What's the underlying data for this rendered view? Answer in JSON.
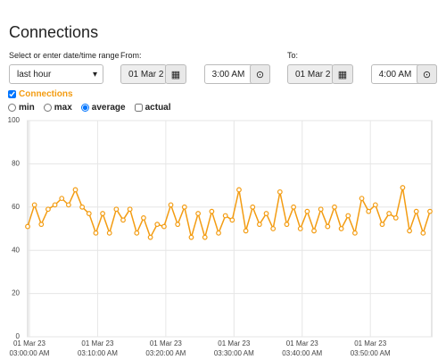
{
  "header": {
    "title": "Connections"
  },
  "range": {
    "label": "Select or enter date/time range",
    "preset": "last hour"
  },
  "from": {
    "label": "From:",
    "date": "01 Mar 2",
    "time": "3:00 AM"
  },
  "to": {
    "label": "To:",
    "date": "01 Mar 2",
    "time": "4:00 AM"
  },
  "series_toggle": {
    "label": "Connections",
    "checked": true
  },
  "modes": [
    {
      "label": "min",
      "kind": "radio",
      "checked": false
    },
    {
      "label": "max",
      "kind": "radio",
      "checked": false
    },
    {
      "label": "average",
      "kind": "radio",
      "checked": true
    },
    {
      "label": "actual",
      "kind": "checkbox",
      "checked": false
    }
  ],
  "chart_data": {
    "type": "line",
    "color": "#f39c12",
    "grid": true,
    "categories": [
      [
        "01 Mar 23",
        "03:00:00 AM"
      ],
      null,
      null,
      null,
      null,
      null,
      null,
      null,
      null,
      null,
      [
        "01 Mar 23",
        "03:10:00 AM"
      ],
      null,
      null,
      null,
      null,
      null,
      null,
      null,
      null,
      null,
      [
        "01 Mar 23",
        "03:20:00 AM"
      ],
      null,
      null,
      null,
      null,
      null,
      null,
      null,
      null,
      null,
      [
        "01 Mar 23",
        "03:30:00 AM"
      ],
      null,
      null,
      null,
      null,
      null,
      null,
      null,
      null,
      null,
      [
        "01 Mar 23",
        "03:40:00 AM"
      ],
      null,
      null,
      null,
      null,
      null,
      null,
      null,
      null,
      null,
      [
        "01 Mar 23",
        "03:50:00 AM"
      ],
      null,
      null,
      null,
      null,
      null,
      null,
      null,
      null,
      null
    ],
    "values": [
      51,
      61,
      52,
      59,
      61,
      64,
      61,
      68,
      60,
      57,
      48,
      57,
      48,
      59,
      54,
      59,
      48,
      55,
      46,
      52,
      51,
      61,
      52,
      60,
      46,
      57,
      46,
      58,
      48,
      56,
      54,
      68,
      49,
      60,
      52,
      57,
      50,
      67,
      52,
      60,
      50,
      58,
      49,
      59,
      51,
      60,
      50,
      56,
      48,
      64,
      58,
      61,
      52,
      57,
      55,
      69,
      49,
      58,
      48,
      58
    ],
    "ylim": [
      0,
      100
    ],
    "yticks": [
      0,
      20,
      40,
      60,
      80,
      100
    ]
  }
}
